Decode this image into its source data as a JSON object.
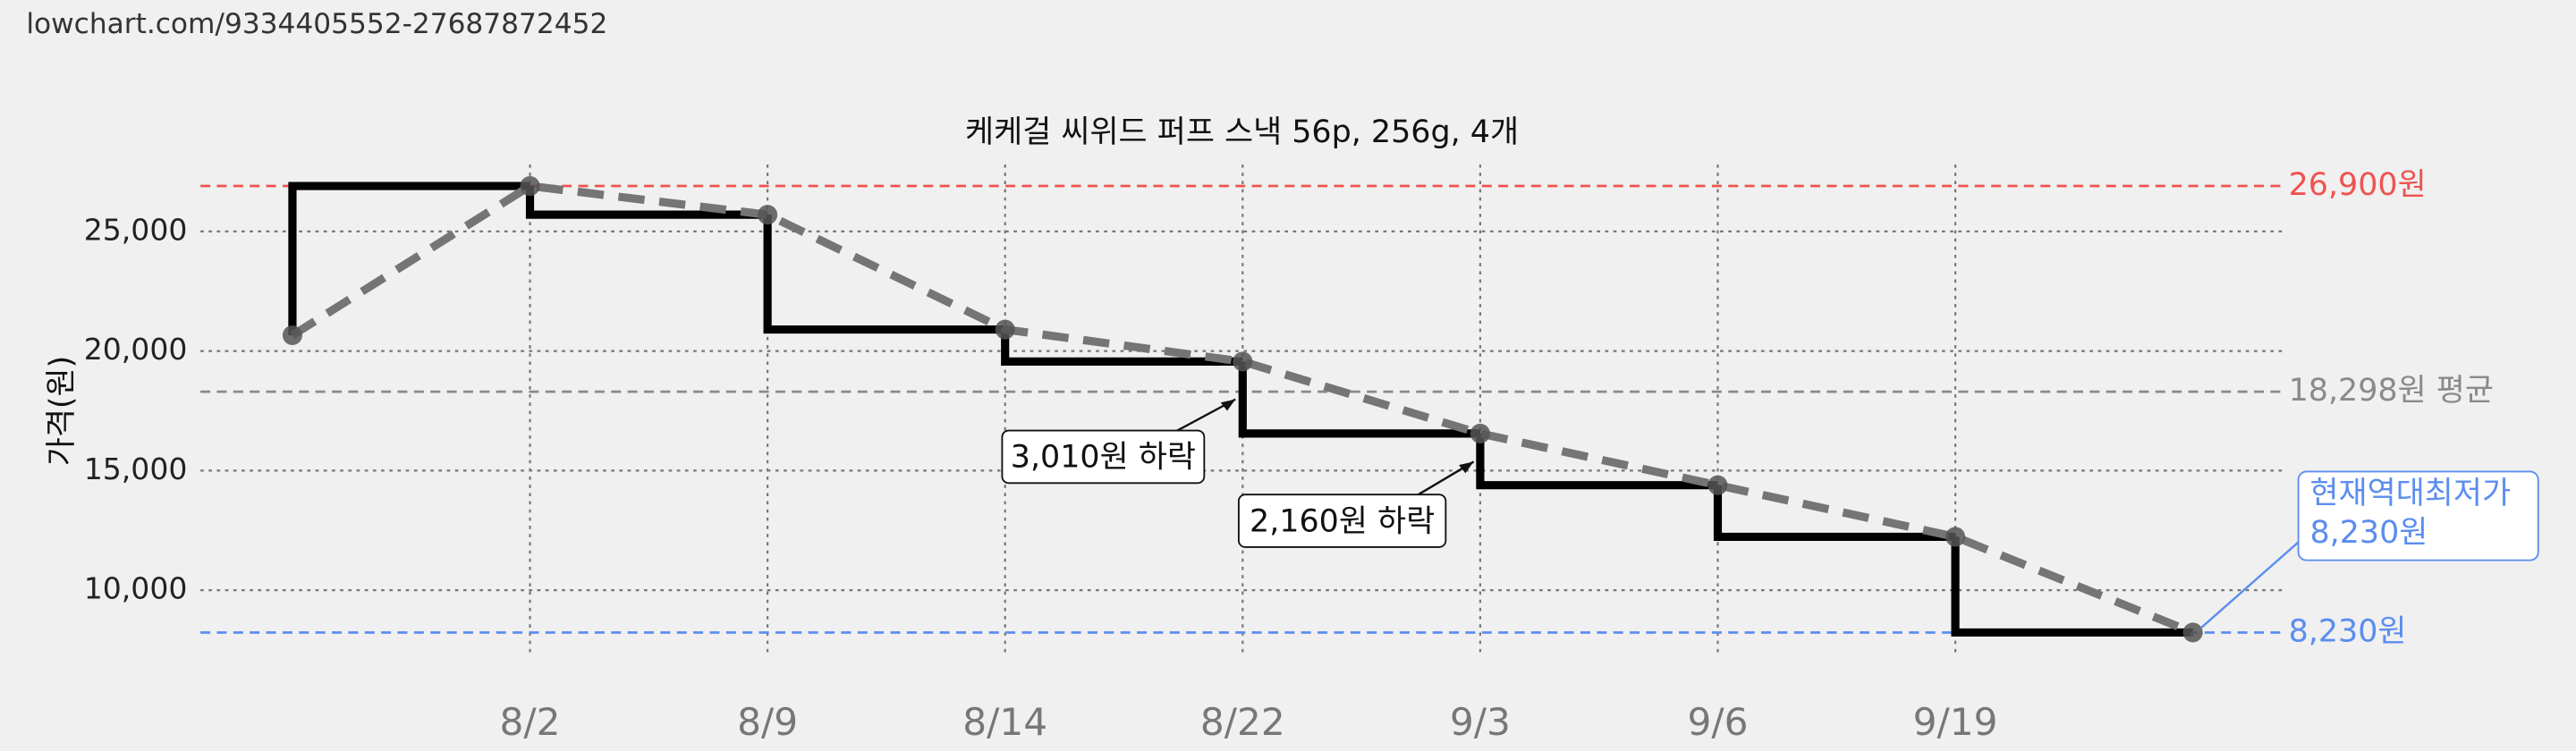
{
  "watermark": "lowchart.com/9334405552-27687872452",
  "chart_data": {
    "type": "step-line",
    "title": "케케걸 씨위드 퍼프 스낵 56p, 256g, 4개",
    "y_label": "가격(원)",
    "categories": [
      null,
      "8/2",
      "8/9",
      "8/14",
      "8/22",
      "9/3",
      "9/6",
      "9/19",
      null
    ],
    "values": [
      20660,
      26900,
      25700,
      20900,
      19560,
      16550,
      14390,
      12230,
      8230
    ],
    "color": "#000000",
    "trend_color": "#757575",
    "ylim": [
      7200,
      27800
    ],
    "yticks": [
      {
        "value": 10000,
        "label": "10,000"
      },
      {
        "value": 15000,
        "label": "15,000"
      },
      {
        "value": 20000,
        "label": "20,000"
      },
      {
        "value": 25000,
        "label": "25,000"
      }
    ],
    "grid": true,
    "reference_lines": [
      {
        "value": 26900,
        "label": "26,900원",
        "color": "#ef5350"
      },
      {
        "value": 18298,
        "label": "18,298원 평균",
        "color": "#8a8a8a"
      },
      {
        "value": 8230,
        "label": "8,230원",
        "color": "#5b8def"
      }
    ],
    "annotations": [
      "3,010원 하락",
      "2,160원 하락"
    ],
    "callout": [
      "현재역대최저가",
      "8,230원"
    ]
  }
}
